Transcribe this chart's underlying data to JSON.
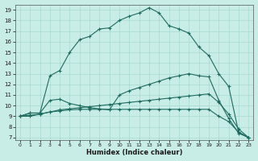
{
  "xlabel": "Humidex (Indice chaleur)",
  "xlim": [
    -0.5,
    23.5
  ],
  "ylim": [
    6.8,
    19.5
  ],
  "yticks": [
    7,
    8,
    9,
    10,
    11,
    12,
    13,
    14,
    15,
    16,
    17,
    18,
    19
  ],
  "xticks": [
    0,
    1,
    2,
    3,
    4,
    5,
    6,
    7,
    8,
    9,
    10,
    11,
    12,
    13,
    14,
    15,
    16,
    17,
    18,
    19,
    20,
    21,
    22,
    23
  ],
  "bg_color": "#c8ece6",
  "line_color": "#1e6b60",
  "grid_color": "#a8d8d0",
  "lines": [
    [
      9.0,
      9.3,
      9.3,
      12.8,
      13.3,
      15.0,
      16.2,
      16.5,
      17.2,
      17.3,
      18.0,
      18.4,
      18.7,
      19.2,
      18.7,
      17.5,
      17.2,
      16.8,
      15.5,
      14.7,
      13.0,
      11.8,
      7.5,
      7.0
    ],
    [
      9.0,
      9.3,
      9.3,
      10.5,
      10.6,
      10.2,
      10.0,
      9.8,
      9.7,
      9.6,
      11.0,
      11.4,
      11.7,
      12.0,
      12.3,
      12.6,
      12.8,
      13.0,
      12.8,
      12.7,
      10.5,
      8.8,
      7.4,
      7.0
    ],
    [
      9.0,
      9.1,
      9.2,
      9.4,
      9.6,
      9.7,
      9.8,
      9.9,
      10.0,
      10.1,
      10.2,
      10.3,
      10.4,
      10.5,
      10.6,
      10.7,
      10.8,
      10.9,
      11.0,
      11.1,
      10.3,
      9.2,
      7.8,
      7.0
    ],
    [
      9.0,
      9.0,
      9.2,
      9.4,
      9.5,
      9.6,
      9.65,
      9.65,
      9.65,
      9.65,
      9.65,
      9.65,
      9.65,
      9.65,
      9.65,
      9.65,
      9.65,
      9.65,
      9.65,
      9.65,
      9.0,
      8.5,
      7.5,
      7.0
    ]
  ]
}
